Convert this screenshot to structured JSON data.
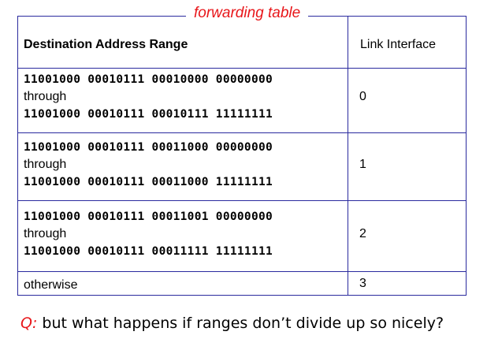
{
  "table": {
    "title": "forwarding table",
    "header_destination": "Destination Address Range",
    "header_link": "Link Interface",
    "rows": [
      {
        "from": "11001000 00010111 00010000 00000000",
        "through": "through",
        "to": "11001000 00010111 00010111 11111111",
        "link": "0"
      },
      {
        "from": "11001000 00010111 00011000 00000000",
        "through": "through",
        "to": "11001000 00010111 00011000 11111111",
        "link": "1"
      },
      {
        "from": "11001000 00010111 00011001 00000000",
        "through": "through",
        "to": "11001000 00010111 00011111 11111111",
        "link": "2"
      }
    ],
    "otherwise_label": "otherwise",
    "otherwise_link": "3"
  },
  "question": {
    "prefix": "Q:",
    "text": " but what happens if ranges don’t divide up so nicely?"
  },
  "colors": {
    "border": "#2a2a9e",
    "accent": "#e8161a"
  }
}
